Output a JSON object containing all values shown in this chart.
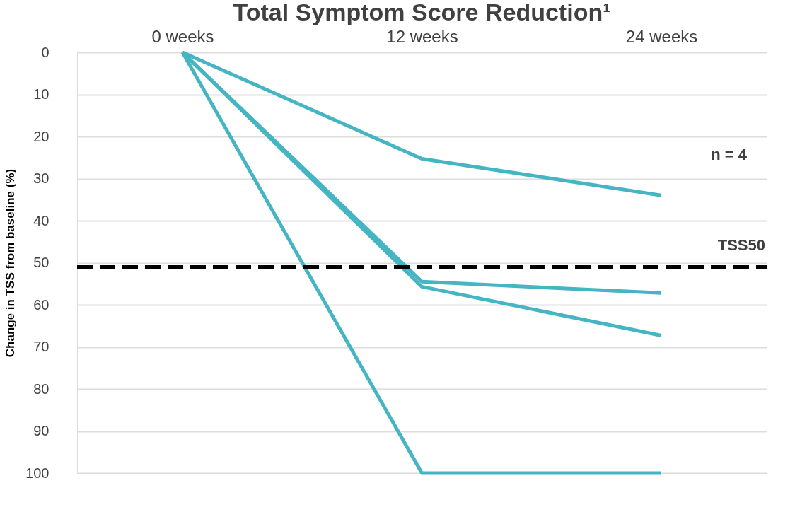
{
  "chart_data": {
    "type": "line",
    "title": "Total Symptom Score Reduction¹",
    "ylabel": "Change in TSS from baseline (%)",
    "categories": [
      "0 weeks",
      "12 weeks",
      "24 weeks"
    ],
    "series": [
      {
        "color": "#45b5c4",
        "values": [
          0,
          25.3,
          34
        ]
      },
      {
        "color": "#45b5c4",
        "values": [
          0,
          54.5,
          57.2
        ]
      },
      {
        "color": "#45b5c4",
        "values": [
          0,
          55.7,
          67.3
        ]
      },
      {
        "color": "#45b5c4",
        "values": [
          0,
          100,
          100
        ]
      }
    ],
    "ylim": [
      100,
      0
    ],
    "yticks": [
      0,
      10,
      20,
      30,
      40,
      50,
      60,
      70,
      80,
      90,
      100
    ],
    "grid": "y",
    "marker": "none",
    "line_style": "solid",
    "legend": false,
    "ref_lines": [
      {
        "axis": "y",
        "value": 51,
        "label": "TSS50",
        "color": "#000000",
        "line_style": "dashed"
      }
    ],
    "annotations": [
      "n = 4"
    ]
  }
}
